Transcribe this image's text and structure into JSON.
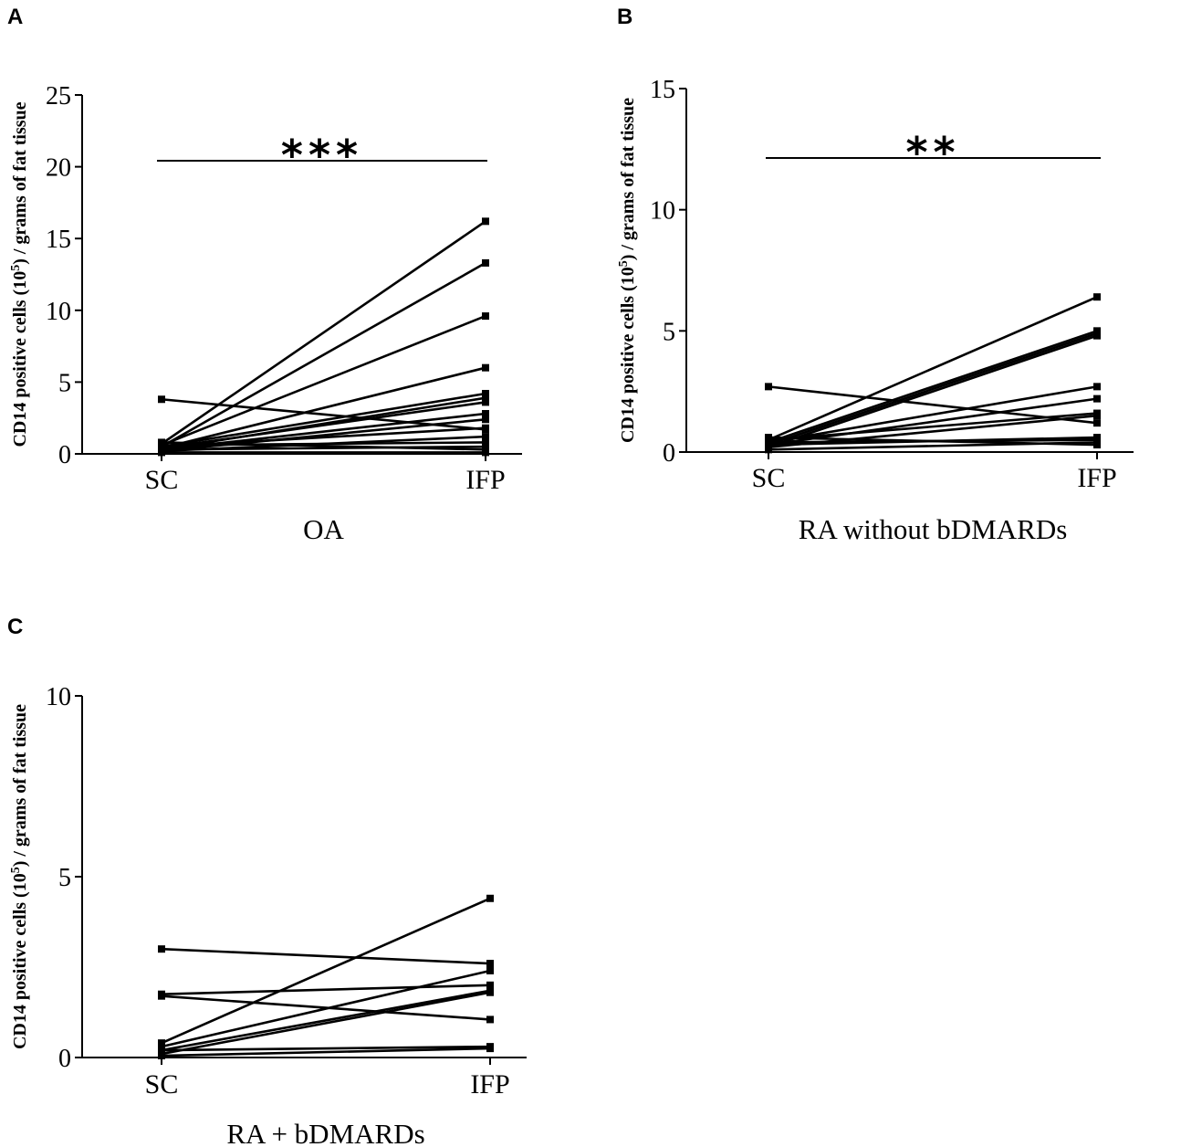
{
  "chart_data": [
    {
      "panel": "A",
      "type": "line",
      "title": "",
      "group_label": "OA",
      "categories": [
        "SC",
        "IFP"
      ],
      "ylabel": "CD14 positive cells (10^5) / grams of fat tissue",
      "ylabel_parts": [
        "CD14 positive cells (10",
        "5",
        ") / grams of fat tissue"
      ],
      "ylim": [
        0,
        25
      ],
      "yticks": [
        "0",
        "5",
        "10",
        "15",
        "20",
        "25"
      ],
      "significance": "***",
      "series": [
        {
          "name": "1",
          "values": [
            3.8,
            1.7
          ]
        },
        {
          "name": "2",
          "values": [
            0.7,
            16.2
          ]
        },
        {
          "name": "3",
          "values": [
            0.5,
            13.3
          ]
        },
        {
          "name": "4",
          "values": [
            0.6,
            9.6
          ]
        },
        {
          "name": "5",
          "values": [
            0.4,
            6.0
          ]
        },
        {
          "name": "6",
          "values": [
            0.5,
            4.2
          ]
        },
        {
          "name": "7",
          "values": [
            0.3,
            3.9
          ]
        },
        {
          "name": "8",
          "values": [
            0.4,
            3.6
          ]
        },
        {
          "name": "9",
          "values": [
            0.3,
            2.8
          ]
        },
        {
          "name": "10",
          "values": [
            0.2,
            2.4
          ]
        },
        {
          "name": "11",
          "values": [
            0.5,
            1.8
          ]
        },
        {
          "name": "12",
          "values": [
            0.2,
            1.2
          ]
        },
        {
          "name": "13",
          "values": [
            0.6,
            0.8
          ]
        },
        {
          "name": "14",
          "values": [
            0.3,
            0.5
          ]
        },
        {
          "name": "15",
          "values": [
            0.8,
            0.3
          ]
        },
        {
          "name": "16",
          "values": [
            0.1,
            0.1
          ]
        }
      ]
    },
    {
      "panel": "B",
      "type": "line",
      "title": "",
      "group_label": "RA without bDMARDs",
      "categories": [
        "SC",
        "IFP"
      ],
      "ylabel": "CD14 positive cells (10^5) / grams of fat tissue",
      "ylabel_parts": [
        "CD14 positive cells (10",
        "5",
        ") / grams of fat tissue"
      ],
      "ylim": [
        0,
        15
      ],
      "yticks": [
        "0",
        "5",
        "10",
        "15"
      ],
      "significance": "**",
      "series": [
        {
          "name": "1",
          "values": [
            2.7,
            1.2
          ]
        },
        {
          "name": "2",
          "values": [
            0.5,
            6.4
          ]
        },
        {
          "name": "3",
          "values": [
            0.4,
            5.0
          ]
        },
        {
          "name": "4",
          "values": [
            0.3,
            4.9
          ]
        },
        {
          "name": "5",
          "values": [
            0.2,
            4.8
          ]
        },
        {
          "name": "6",
          "values": [
            0.4,
            2.7
          ]
        },
        {
          "name": "7",
          "values": [
            0.3,
            2.2
          ]
        },
        {
          "name": "8",
          "values": [
            0.5,
            1.6
          ]
        },
        {
          "name": "9",
          "values": [
            0.2,
            1.5
          ]
        },
        {
          "name": "10",
          "values": [
            0.3,
            0.6
          ]
        },
        {
          "name": "11",
          "values": [
            0.4,
            0.5
          ]
        },
        {
          "name": "12",
          "values": [
            0.1,
            0.4
          ]
        },
        {
          "name": "13",
          "values": [
            0.6,
            0.3
          ]
        }
      ]
    },
    {
      "panel": "C",
      "type": "line",
      "title": "",
      "group_label": "RA + bDMARDs",
      "categories": [
        "SC",
        "IFP"
      ],
      "ylabel": "CD14 positive cells (10^5) / grams of fat tissue",
      "ylabel_parts": [
        "CD14 positive cells (10",
        "5",
        ") / grams of fat tissue"
      ],
      "ylim": [
        0,
        10
      ],
      "yticks": [
        "0",
        "5",
        "10"
      ],
      "significance": "",
      "series": [
        {
          "name": "1",
          "values": [
            3.0,
            2.6
          ]
        },
        {
          "name": "2",
          "values": [
            1.75,
            2.0
          ]
        },
        {
          "name": "3",
          "values": [
            1.7,
            1.05
          ]
        },
        {
          "name": "4",
          "values": [
            0.4,
            4.4
          ]
        },
        {
          "name": "5",
          "values": [
            0.3,
            2.4
          ]
        },
        {
          "name": "6",
          "values": [
            0.2,
            1.85
          ]
        },
        {
          "name": "7",
          "values": [
            0.1,
            1.8
          ]
        },
        {
          "name": "8",
          "values": [
            0.2,
            0.3
          ]
        },
        {
          "name": "9",
          "values": [
            0.05,
            0.25
          ]
        }
      ]
    }
  ]
}
